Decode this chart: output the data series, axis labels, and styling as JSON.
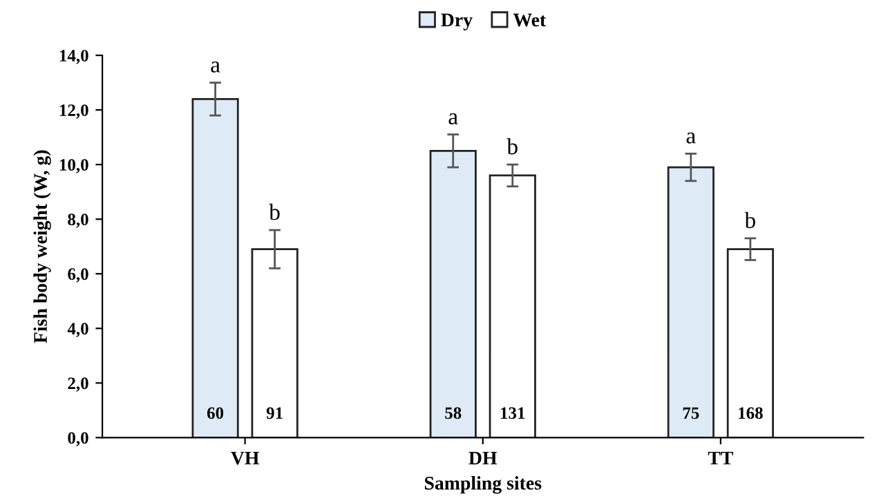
{
  "chart_data": {
    "type": "bar",
    "xlabel": "Sampling sites",
    "ylabel": "Fish body weight (W, g)",
    "categories": [
      "VH",
      "DH",
      "TT"
    ],
    "series": [
      {
        "name": "Dry",
        "color": "#deebf7",
        "values": [
          12.4,
          10.5,
          9.9
        ],
        "errors": [
          0.6,
          0.6,
          0.5
        ],
        "value_labels": [
          "a",
          "a",
          "a"
        ]
      },
      {
        "name": "Wet",
        "color": "#ffffff",
        "values": [
          6.9,
          9.6,
          6.9
        ],
        "errors": [
          0.7,
          0.4,
          0.4
        ],
        "value_labels": [
          "b",
          "b",
          "b"
        ]
      }
    ],
    "annotations": [
      "60",
      "91",
      "58",
      "131",
      "75",
      "168"
    ],
    "ylim": [
      0,
      14
    ],
    "yticks": [
      {
        "value": 0,
        "label": "0,0"
      },
      {
        "value": 2,
        "label": "2,0"
      },
      {
        "value": 4,
        "label": "4,0"
      },
      {
        "value": 6,
        "label": "6,0"
      },
      {
        "value": 8,
        "label": "8,0"
      },
      {
        "value": 10,
        "label": "10,0"
      },
      {
        "value": 12,
        "label": "12,0"
      },
      {
        "value": 14,
        "label": "14,0"
      }
    ],
    "grid": false,
    "legend": "top"
  }
}
